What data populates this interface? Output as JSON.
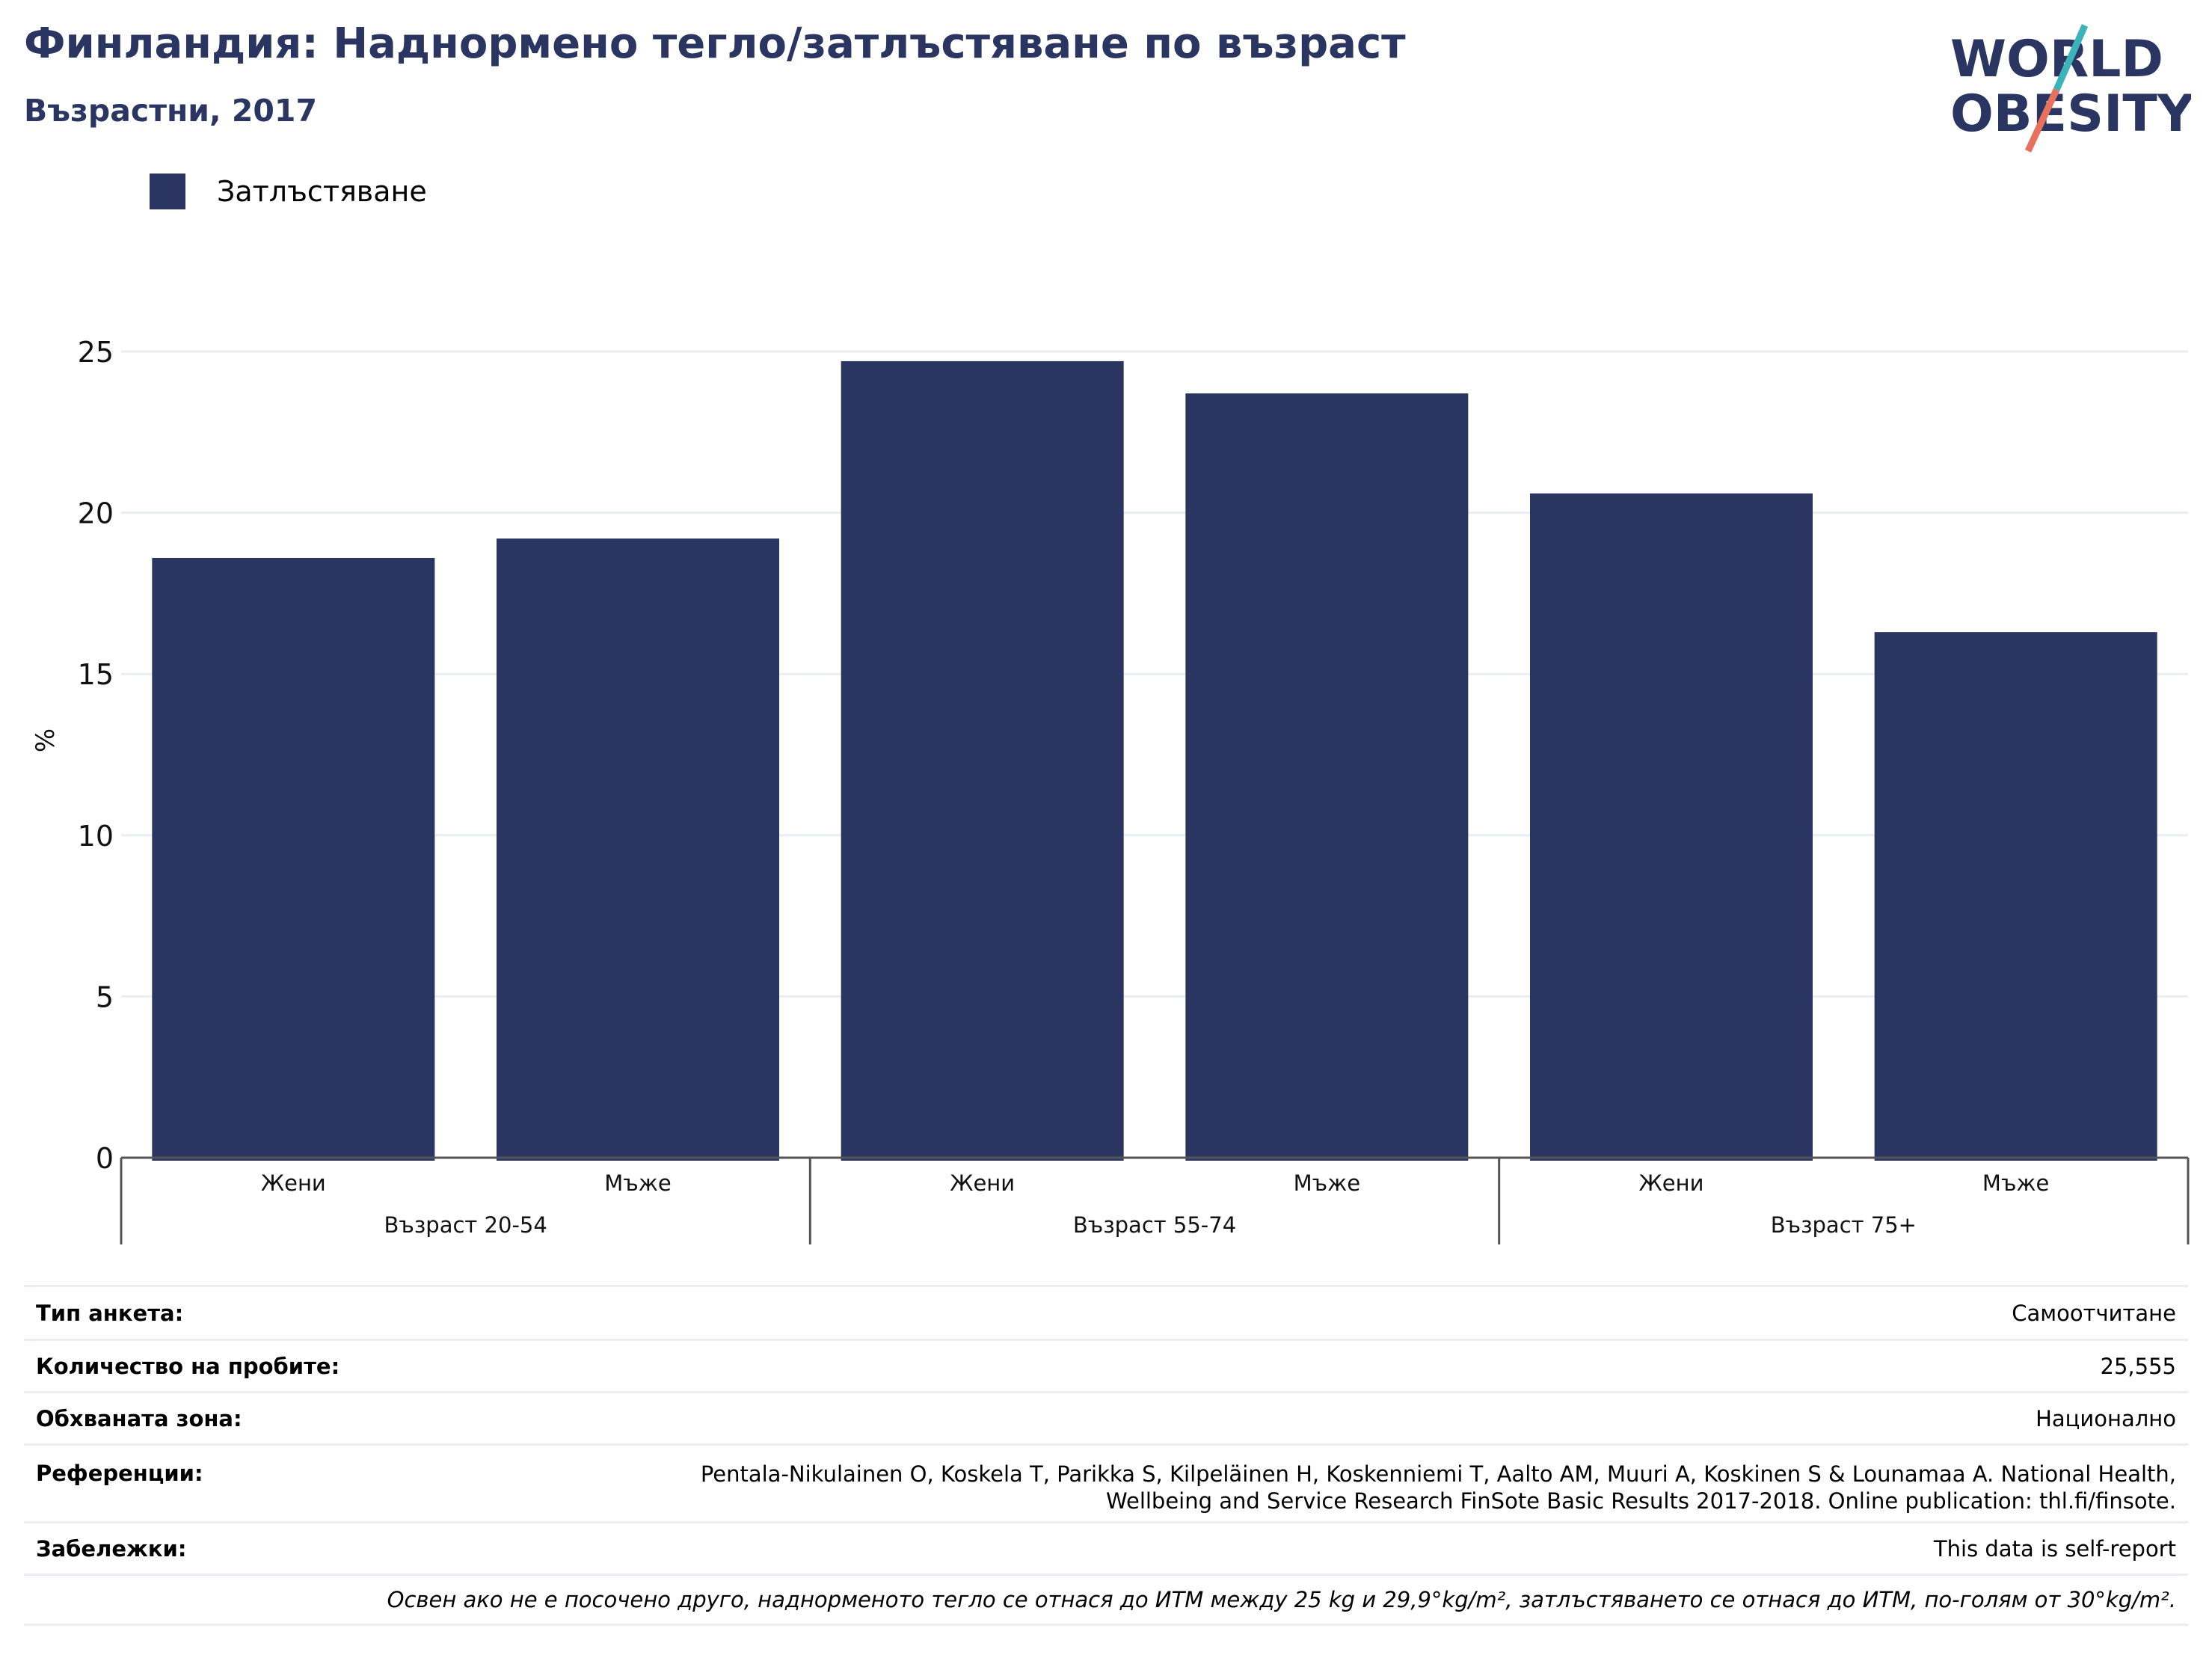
{
  "header": {
    "title": "Финландия: Наднормено тегло/затлъстяване по възраст",
    "subtitle": "Възрастни, 2017",
    "logo_line1": "WORLD",
    "logo_line2": "OBESITY"
  },
  "colors": {
    "bar": "#2b3562",
    "grid": "#e8eef3",
    "axis": "#555555",
    "logo_text": "#2b3562",
    "logo_teal": "#3bb3b8",
    "logo_coral": "#e8705f"
  },
  "legend": {
    "label": "Затлъстяване"
  },
  "chart_data": {
    "type": "bar",
    "ylabel": "%",
    "ylim": [
      0,
      26.5
    ],
    "yticks": [
      0,
      5,
      10,
      15,
      20,
      25
    ],
    "grid": true,
    "legend_position": "top-left",
    "categories": [
      "Жени",
      "Мъже",
      "Жени",
      "Мъже",
      "Жени",
      "Мъже"
    ],
    "groups": [
      {
        "label": "Възраст 20-54",
        "size": 2
      },
      {
        "label": "Възраст 55-74",
        "size": 2
      },
      {
        "label": "Възраст 75+",
        "size": 2
      }
    ],
    "series": [
      {
        "name": "Затлъстяване",
        "values": [
          18.6,
          19.2,
          24.7,
          23.7,
          20.6,
          16.3
        ]
      }
    ]
  },
  "info": {
    "survey_type": {
      "label": "Тип анкета:",
      "value": "Самоотчитане"
    },
    "sample_size": {
      "label": "Количество на пробите:",
      "value": "25,555"
    },
    "area": {
      "label": "Обхваната зона:",
      "value": "Национално"
    },
    "references": {
      "label": "Референции:",
      "line1": "Pentala-Nikulainen O, Koskela T, Parikka S, Kilpeläinen H, Koskenniemi T, Aalto AM, Muuri A, Koskinen S & Lounamaa A. National Health,",
      "line2": "Wellbeing and Service Research FinSote Basic Results 2017-2018. Online publication: thl.fi/finsote."
    },
    "notes": {
      "label": "Забележки:",
      "value": "This data is self-report"
    },
    "footnote": "Освен ако не е посочено друго, наднорменото тегло се отнася до ИТМ между 25 kg и 29,9°kg/m², затлъстяването се отнася до ИТМ, по-голям от 30°kg/m²."
  }
}
